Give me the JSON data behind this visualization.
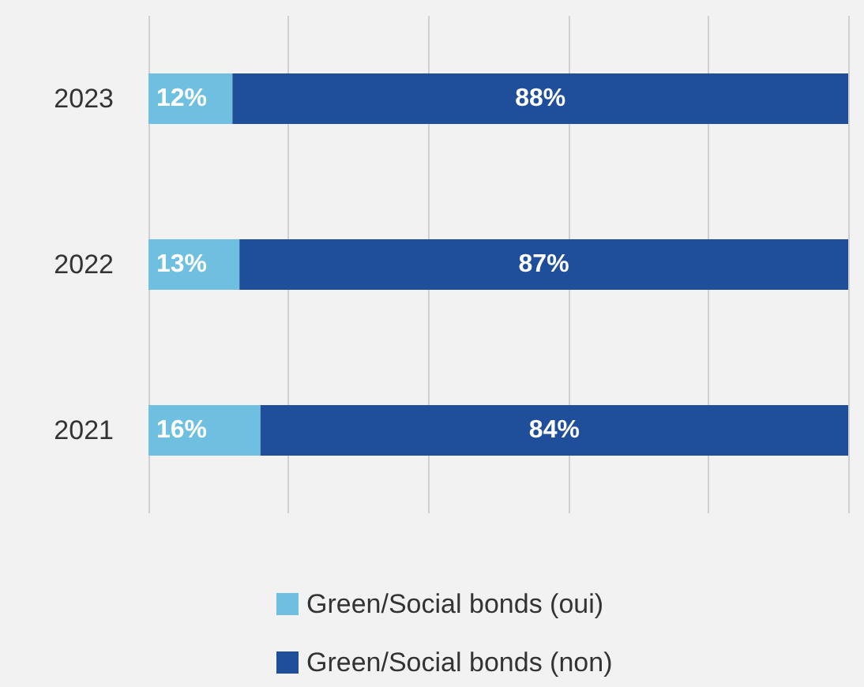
{
  "chart_data": {
    "type": "bar",
    "orientation": "horizontal",
    "stacked": true,
    "categories": [
      "2023",
      "2022",
      "2021"
    ],
    "series": [
      {
        "name": "Green/Social bonds (oui)",
        "color": "#6fc0e0",
        "values": [
          12,
          13,
          16
        ],
        "value_labels": [
          "12%",
          "13%",
          "16%"
        ]
      },
      {
        "name": "Green/Social bonds (non)",
        "color": "#1f4e9a",
        "values": [
          88,
          87,
          84
        ],
        "value_labels": [
          "88%",
          "87%",
          "84%"
        ]
      }
    ],
    "tick_labels": "y",
    "grid": "x",
    "legend": "bottom"
  }
}
